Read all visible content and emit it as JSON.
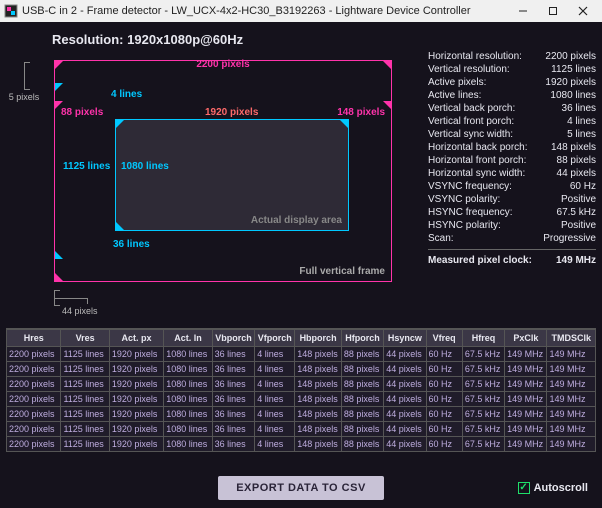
{
  "colors": {
    "bg": "#15121c",
    "pink": "#ff33aa",
    "cyan": "#00c8ff",
    "red": "#ff6a6a",
    "panel_bg": "#2e2a36",
    "green": "#1fdf6a"
  },
  "titlebar": {
    "text": "USB-C in 2 - Frame detector - LW_UCX-4x2-HC30_B3192263 - Lightware Device Controller"
  },
  "header": {
    "resolution_label": "Resolution:",
    "resolution_value": "1920x1080p@60Hz"
  },
  "diagram": {
    "full_frame_label": "Full vertical frame",
    "active_area_label": "Actual display area",
    "top_pixels": "2200 pixels",
    "left_gap": "5 pixels",
    "vfporch": "4 lines",
    "hbporch": "88 pixels",
    "hactive": "1920 pixels",
    "hfporch": "148 pixels",
    "vtotal": "1125 lines",
    "vactive": "1080 lines",
    "vbporch": "36 lines",
    "bottom_gap": "44 pixels"
  },
  "panel": {
    "rows": [
      {
        "k": "Horizontal resolution:",
        "v": "2200 pixels"
      },
      {
        "k": "Vertical resolution:",
        "v": "1125 lines"
      },
      {
        "k": "Active pixels:",
        "v": "1920 pixels"
      },
      {
        "k": "Active lines:",
        "v": "1080 lines"
      },
      {
        "k": "Vertical back porch:",
        "v": "36 lines"
      },
      {
        "k": "Vertical front porch:",
        "v": "4 lines"
      },
      {
        "k": "Vertical sync width:",
        "v": "5 lines"
      },
      {
        "k": "Horizontal back porch:",
        "v": "148 pixels"
      },
      {
        "k": "Horizontal front porch:",
        "v": "88 pixels"
      },
      {
        "k": "Horizontal sync width:",
        "v": "44 pixels"
      },
      {
        "k": "VSYNC frequency:",
        "v": "60 Hz"
      },
      {
        "k": "VSYNC polarity:",
        "v": "Positive"
      },
      {
        "k": "HSYNC frequency:",
        "v": "67.5 kHz"
      },
      {
        "k": "HSYNC polarity:",
        "v": "Positive"
      },
      {
        "k": "Scan:",
        "v": "Progressive"
      }
    ],
    "measured": {
      "k": "Measured pixel clock:",
      "v": "149 MHz"
    }
  },
  "table": {
    "columns": [
      "Hres",
      "Vres",
      "Act. px",
      "Act. ln",
      "Vbporch",
      "Vfporch",
      "Hbporch",
      "Hfporch",
      "Hsyncw",
      "Vfreq",
      "Hfreq",
      "PxClk",
      "TMDSClk"
    ],
    "rows": [
      [
        "2200 pixels",
        "1125 lines",
        "1920 pixels",
        "1080 lines",
        "36 lines",
        "4 lines",
        "148 pixels",
        "88 pixels",
        "44 pixels",
        "60 Hz",
        "67.5 kHz",
        "149 MHz",
        "149 MHz"
      ],
      [
        "2200 pixels",
        "1125 lines",
        "1920 pixels",
        "1080 lines",
        "36 lines",
        "4 lines",
        "148 pixels",
        "88 pixels",
        "44 pixels",
        "60 Hz",
        "67.5 kHz",
        "149 MHz",
        "149 MHz"
      ],
      [
        "2200 pixels",
        "1125 lines",
        "1920 pixels",
        "1080 lines",
        "36 lines",
        "4 lines",
        "148 pixels",
        "88 pixels",
        "44 pixels",
        "60 Hz",
        "67.5 kHz",
        "149 MHz",
        "149 MHz"
      ],
      [
        "2200 pixels",
        "1125 lines",
        "1920 pixels",
        "1080 lines",
        "36 lines",
        "4 lines",
        "148 pixels",
        "88 pixels",
        "44 pixels",
        "60 Hz",
        "67.5 kHz",
        "149 MHz",
        "149 MHz"
      ],
      [
        "2200 pixels",
        "1125 lines",
        "1920 pixels",
        "1080 lines",
        "36 lines",
        "4 lines",
        "148 pixels",
        "88 pixels",
        "44 pixels",
        "60 Hz",
        "67.5 kHz",
        "149 MHz",
        "149 MHz"
      ],
      [
        "2200 pixels",
        "1125 lines",
        "1920 pixels",
        "1080 lines",
        "36 lines",
        "4 lines",
        "148 pixels",
        "88 pixels",
        "44 pixels",
        "60 Hz",
        "67.5 kHz",
        "149 MHz",
        "149 MHz"
      ],
      [
        "2200 pixels",
        "1125 lines",
        "1920 pixels",
        "1080 lines",
        "36 lines",
        "4 lines",
        "148 pixels",
        "88 pixels",
        "44 pixels",
        "60 Hz",
        "67.5 kHz",
        "149 MHz",
        "149 MHz"
      ]
    ],
    "col_widths_pct": [
      9,
      8,
      9,
      8,
      7,
      6,
      7,
      7,
      7,
      6,
      7,
      7,
      8
    ]
  },
  "footer": {
    "export_label": "EXPORT DATA TO CSV",
    "autoscroll_label": "Autoscroll",
    "autoscroll_checked": true
  }
}
